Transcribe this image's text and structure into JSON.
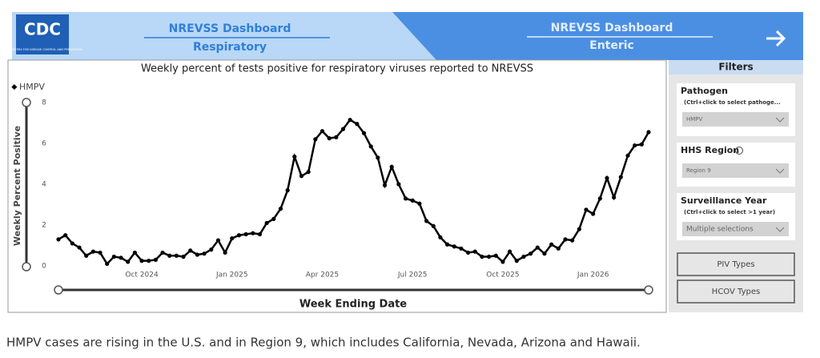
{
  "header": {
    "logo": "CDC",
    "logo_subtitle": "U.S. CENTERS FOR DISEASE CONTROL AND PREVENTION",
    "tabs": [
      {
        "title": "NREVSS Dashboard",
        "subtitle": "Respiratory"
      },
      {
        "title": "NREVSS Dashboard",
        "subtitle": "Enteric"
      }
    ]
  },
  "chart_data": {
    "type": "line",
    "title": "Weekly percent of tests positive for respiratory viruses reported to NREVSS",
    "x_label": "Week Ending Date",
    "y_label": "Weekly Percent Positive",
    "categories": [
      null,
      null,
      null,
      null,
      null,
      null,
      null,
      null,
      null,
      null,
      null,
      null,
      "Oct 2024",
      null,
      null,
      null,
      null,
      null,
      null,
      null,
      null,
      null,
      null,
      null,
      null,
      "Jan 2025",
      null,
      null,
      null,
      null,
      null,
      null,
      null,
      null,
      null,
      null,
      null,
      null,
      "Apr 2025",
      null,
      null,
      null,
      null,
      null,
      null,
      null,
      null,
      null,
      null,
      null,
      null,
      "Jul 2025",
      null,
      null,
      null,
      null,
      null,
      null,
      null,
      null,
      null,
      null,
      null,
      null,
      "Oct 2025",
      null,
      null,
      null,
      null,
      null,
      null,
      null,
      null,
      null,
      null,
      null,
      null,
      "Jan 2026",
      null,
      null,
      null,
      null,
      null,
      null,
      null,
      null
    ],
    "series": [
      {
        "name": "HMPV",
        "color": "#000000",
        "values": [
          1.3,
          1.5,
          1.1,
          0.9,
          0.5,
          0.7,
          0.65,
          0.1,
          0.45,
          0.4,
          0.2,
          0.65,
          0.25,
          0.25,
          0.3,
          0.65,
          0.5,
          0.5,
          0.45,
          0.75,
          0.55,
          0.6,
          0.8,
          1.25,
          0.65,
          1.35,
          1.5,
          1.55,
          1.6,
          1.55,
          2.1,
          2.3,
          2.8,
          3.7,
          5.35,
          4.4,
          4.6,
          6.2,
          6.6,
          6.25,
          6.3,
          6.7,
          7.15,
          6.95,
          6.5,
          5.85,
          5.3,
          3.95,
          4.85,
          4.0,
          3.3,
          3.2,
          3.05,
          2.2,
          1.95,
          1.4,
          1.05,
          0.95,
          0.85,
          0.65,
          0.7,
          0.45,
          0.45,
          0.5,
          0.2,
          0.7,
          0.25,
          0.45,
          0.6,
          0.9,
          0.6,
          1.05,
          0.85,
          1.3,
          1.25,
          1.8,
          2.75,
          2.55,
          3.3,
          4.3,
          3.35,
          4.35,
          5.4,
          5.9,
          5.95,
          6.55
        ]
      }
    ],
    "ylim": [
      0,
      8
    ],
    "yticks": [
      0,
      2,
      4,
      6,
      8
    ],
    "grid": false,
    "legend": "top-left"
  },
  "filters": {
    "title": "Filters",
    "fields": [
      {
        "label": "Pathogen",
        "hint": "(Ctrl+click to select pathoge...",
        "value": "HMPV"
      },
      {
        "label": "HHS Region",
        "value": "Region 9"
      },
      {
        "label": "Surveillance Year",
        "hint": "(Ctrl+click to select >1 year)",
        "value": "Multiple selections"
      }
    ],
    "buttons": [
      "PIV Types",
      "HCOV Types"
    ]
  },
  "caption": "HMPV cases are rising in the U.S. and in Region 9, which includes California, Nevada, Arizona and Hawaii."
}
